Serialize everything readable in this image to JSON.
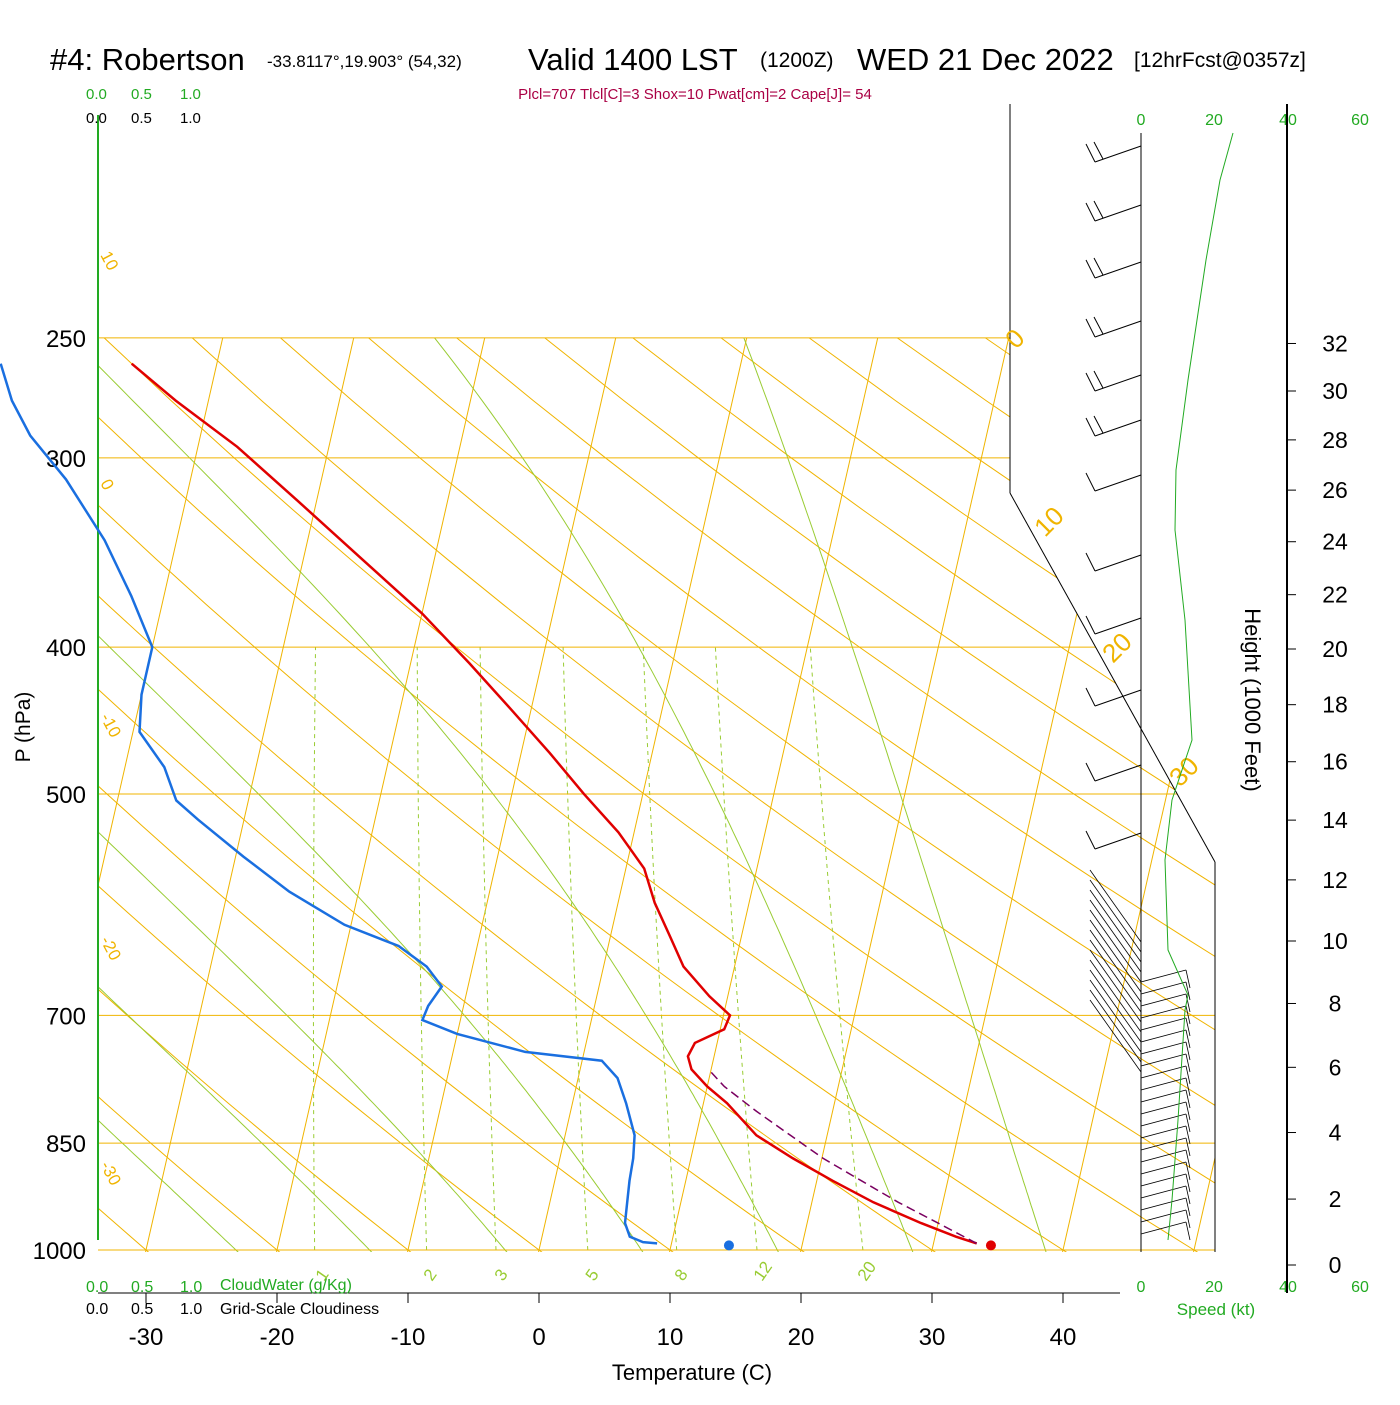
{
  "header": {
    "station": "#4: Robertson",
    "coords": "-33.8117°,19.903° (54,32)",
    "valid": "Valid 1400 LST",
    "utc": "(1200Z)",
    "date": "WED 21 Dec 2022",
    "forecast": "[12hrFcst@0357z]"
  },
  "indices": "Plcl=707 Tlcl[C]=3 Shox=10 Pwat[cm]=2 Cape[J]= 54",
  "legend": {
    "top_green": [
      "0.0",
      "0.5",
      "1.0"
    ],
    "top_black": [
      "0.0",
      "0.5",
      "1.0"
    ],
    "bottom_green": [
      "0.0",
      "0.5",
      "1.0"
    ],
    "bottom_black": [
      "0.0",
      "0.5",
      "1.0"
    ],
    "cloudwater": "CloudWater (g/Kg)",
    "cloudiness": "Grid-Scale Cloudiness"
  },
  "axes": {
    "ylabel": "P (hPa)",
    "xlabel": "Temperature (C)",
    "height_label": "Height (1000 Feet)",
    "speed_label": "Speed (kt)"
  },
  "colors": {
    "temperature": "#e00000",
    "dewpoint": "#1a6fe0",
    "parcel": "#7a0060",
    "isotherm": "#f0b400",
    "dry_adiabat": "#f0b400",
    "moist_adiabat": "#99cc33",
    "mixing_ratio": "#99cc33",
    "speed": "#22aa22",
    "indices": "#aa0044"
  },
  "chart_data": {
    "type": "line",
    "title": "#4: Robertson Valid 1400 LST WED 21 Dec 2022",
    "xlabel": "Temperature (C)",
    "ylabel": "P (hPa)",
    "xlim": [
      -35,
      45
    ],
    "ylim": [
      1050,
      250
    ],
    "log_y": true,
    "pressure_ticks": [
      1000,
      850,
      700,
      500,
      400,
      300,
      250
    ],
    "temp_ticks": [
      -30,
      -20,
      -10,
      0,
      10,
      20,
      30,
      40
    ],
    "dry_adiabat_labels": [
      "10",
      "0",
      "-10",
      "-20",
      "-30"
    ],
    "moist_adiabat_labels": [
      "0",
      "10",
      "20",
      "30"
    ],
    "mixing_ratio_labels": [
      "1",
      "2",
      "3",
      "5",
      "8",
      "12",
      "20"
    ],
    "height_ticks": [
      "0",
      "2",
      "4",
      "6",
      "8",
      "10",
      "12",
      "14",
      "16",
      "18",
      "20",
      "22",
      "24",
      "26",
      "28",
      "30",
      "32"
    ],
    "speed_ticks_top": [
      "0",
      "20",
      "40",
      "60"
    ],
    "speed_ticks_bottom": [
      "0",
      "20",
      "40",
      "60"
    ],
    "grid": true,
    "series": [
      {
        "name": "Temperature",
        "points": [
          [
            990,
            33.3
          ],
          [
            980,
            31.6
          ],
          [
            960,
            28.7
          ],
          [
            930,
            24.7
          ],
          [
            900,
            21.2
          ],
          [
            870,
            17.8
          ],
          [
            840,
            14.6
          ],
          [
            800,
            11.8
          ],
          [
            780,
            10.0
          ],
          [
            760,
            8.5
          ],
          [
            745,
            8.0
          ],
          [
            730,
            8.3
          ],
          [
            715,
            10.3
          ],
          [
            700,
            10.5
          ],
          [
            680,
            8.6
          ],
          [
            650,
            6.1
          ],
          [
            620,
            4.5
          ],
          [
            590,
            2.8
          ],
          [
            560,
            1.4
          ],
          [
            530,
            -1.2
          ],
          [
            500,
            -4.5
          ],
          [
            470,
            -7.8
          ],
          [
            440,
            -11.5
          ],
          [
            410,
            -15.5
          ],
          [
            380,
            -20.0
          ],
          [
            350,
            -25.5
          ],
          [
            320,
            -31.5
          ],
          [
            295,
            -37.0
          ],
          [
            275,
            -42.5
          ],
          [
            260,
            -46.5
          ]
        ]
      },
      {
        "name": "Dewpoint",
        "points": [
          [
            990,
            8.9
          ],
          [
            988,
            7.8
          ],
          [
            980,
            6.7
          ],
          [
            960,
            6.1
          ],
          [
            930,
            5.9
          ],
          [
            900,
            5.7
          ],
          [
            870,
            5.6
          ],
          [
            840,
            5.3
          ],
          [
            800,
            4.1
          ],
          [
            770,
            3.0
          ],
          [
            750,
            1.5
          ],
          [
            740,
            -4.5
          ],
          [
            720,
            -10.0
          ],
          [
            705,
            -12.9
          ],
          [
            690,
            -12.7
          ],
          [
            670,
            -12.0
          ],
          [
            650,
            -13.5
          ],
          [
            630,
            -16.0
          ],
          [
            610,
            -20.5
          ],
          [
            580,
            -25.3
          ],
          [
            550,
            -29.4
          ],
          [
            520,
            -33.5
          ],
          [
            505,
            -35.5
          ],
          [
            480,
            -37.0
          ],
          [
            455,
            -39.5
          ],
          [
            430,
            -40.0
          ],
          [
            400,
            -40.0
          ],
          [
            370,
            -42.5
          ],
          [
            340,
            -45.5
          ],
          [
            310,
            -49.5
          ],
          [
            290,
            -53.0
          ],
          [
            275,
            -55.0
          ],
          [
            260,
            -56.5
          ]
        ]
      },
      {
        "name": "Parcel",
        "points": [
          [
            990,
            33.3
          ],
          [
            960,
            30.0
          ],
          [
            930,
            26.6
          ],
          [
            900,
            23.4
          ],
          [
            870,
            20.1
          ],
          [
            840,
            17.2
          ],
          [
            810,
            14.2
          ],
          [
            780,
            11.3
          ],
          [
            760,
            9.8
          ]
        ]
      }
    ],
    "surface_temp": 34.5,
    "surface_dewpoint": 14.5,
    "surface_pressure": 993
  }
}
